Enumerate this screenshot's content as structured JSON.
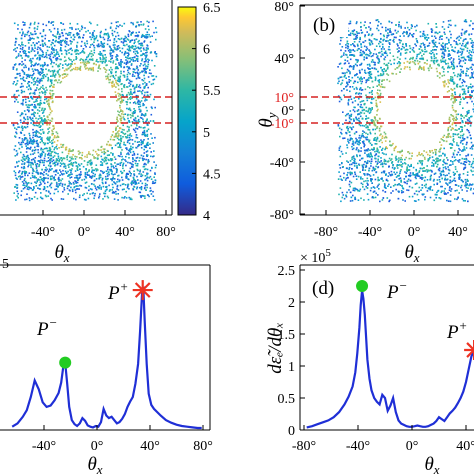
{
  "colors": {
    "curve": "#1f2fd6",
    "marker_minus": "#22cc22",
    "marker_plus": "#ee3322",
    "dashed": "#d62222",
    "axis": "#000000"
  },
  "colorbar": {
    "ticks": [
      "6.5",
      "6",
      "5.5",
      "5",
      "4.5",
      "4"
    ],
    "values": [
      6.5,
      6,
      5.5,
      5,
      4.5,
      4
    ],
    "range": [
      4,
      6.5
    ],
    "colormap": "parula"
  },
  "panel_a": {
    "x_ticks": [
      "-40°",
      "0°",
      "40°",
      "80°"
    ],
    "xlabel_sym": "θ",
    "xlabel_sub": "x",
    "exp_fragment": "5"
  },
  "panel_b": {
    "label": "(b)",
    "y_ticks": [
      "80°",
      "40°",
      "0°",
      "-40°",
      "-80°"
    ],
    "red_ticks": [
      "10°",
      "-10°"
    ],
    "ylabel_sym": "θ",
    "ylabel_sub": "y",
    "x_ticks": [
      "-80°",
      "-40°",
      "0°",
      "40°"
    ],
    "xlabel_sym": "θ",
    "xlabel_sub": "x"
  },
  "panel_c": {
    "x_ticks": [
      "-40°",
      "0°",
      "40°",
      "80°"
    ],
    "xlabel_sym": "θ",
    "xlabel_sub": "x",
    "peak_minus_sym": "P",
    "peak_minus_sup": "−",
    "peak_plus_sym": "P",
    "peak_plus_sup": "+"
  },
  "panel_d": {
    "label": "(d)",
    "exponent_base": "× 10",
    "exponent_power": "5",
    "y_ticks": [
      "2.5",
      "2",
      "1.5",
      "1",
      "0.5",
      "0"
    ],
    "ylabel": "dε̃ₑ/dθₓ",
    "x_ticks": [
      "-80°",
      "-40°",
      "0°",
      "40°"
    ],
    "xlabel_sym": "θ",
    "xlabel_sub": "x",
    "peak_minus_sym": "P",
    "peak_minus_sup": "−",
    "peak_plus_sym": "P",
    "peak_plus_sup": "+"
  },
  "chart_data": [
    {
      "type": "heatmap",
      "panel": "a",
      "xlabel": "θx",
      "xlim": [
        -80,
        80
      ],
      "x_ticks": [
        -40,
        0,
        40,
        80
      ],
      "colorbar": {
        "range": [
          4,
          6.5
        ],
        "ticks": [
          4,
          4.5,
          5,
          5.5,
          6,
          6.5
        ]
      },
      "reference_lines_y": [
        10,
        -10
      ],
      "void_radius_deg": 32,
      "ring_radius_deg": 35
    },
    {
      "type": "heatmap",
      "panel": "b",
      "label": "(b)",
      "xlabel": "θx",
      "ylabel": "θy",
      "xlim": [
        -80,
        80
      ],
      "ylim": [
        -80,
        80
      ],
      "x_ticks": [
        -80,
        -40,
        0,
        40
      ],
      "y_ticks": [
        80,
        40,
        0,
        -40,
        -80
      ],
      "reference_lines_y": [
        10,
        -10
      ],
      "void_radius_deg": 32,
      "ring_radius_deg": 35
    },
    {
      "type": "line",
      "panel": "c",
      "xlabel": "θx",
      "xlim": [
        -80,
        80
      ],
      "x_ticks": [
        -40,
        0,
        40,
        80
      ],
      "ylim": [
        0,
        2.5
      ],
      "y_scale": 100000,
      "series": [
        {
          "x": [
            -64,
            -60,
            -56,
            -53,
            -50,
            -47,
            -44,
            -41,
            -38,
            -35,
            -32,
            -29,
            -27,
            -25.5,
            -24,
            -22.5,
            -21,
            -19,
            -17,
            -15,
            -13,
            -11,
            -9,
            -7,
            -5,
            -3,
            -1,
            1,
            3,
            5,
            7,
            9,
            11,
            13,
            15,
            17,
            19,
            21,
            23,
            25,
            27,
            29,
            31,
            32.5,
            34,
            35,
            36,
            37.5,
            39,
            41,
            43,
            45,
            48,
            52,
            56,
            60,
            64,
            68,
            72,
            76,
            79
          ],
          "y": [
            0.05,
            0.1,
            0.2,
            0.3,
            0.5,
            0.75,
            0.62,
            0.42,
            0.35,
            0.37,
            0.45,
            0.56,
            0.72,
            0.95,
            1.02,
            0.7,
            0.35,
            0.15,
            0.09,
            0.06,
            0.1,
            0.18,
            0.14,
            0.07,
            0.05,
            0.04,
            0.06,
            0.05,
            0.12,
            0.32,
            0.22,
            0.18,
            0.2,
            0.15,
            0.1,
            0.12,
            0.17,
            0.24,
            0.35,
            0.43,
            0.5,
            0.7,
            1.0,
            1.5,
            2.08,
            2.12,
            1.65,
            1.0,
            0.55,
            0.38,
            0.32,
            0.28,
            0.22,
            0.15,
            0.11,
            0.08,
            0.06,
            0.05,
            0.04,
            0.03,
            0.03
          ]
        }
      ],
      "markers": [
        {
          "label": "P−",
          "x": -24,
          "y": 1.02
        },
        {
          "label": "P+",
          "x": 34.5,
          "y": 2.12
        }
      ]
    },
    {
      "type": "line",
      "panel": "d",
      "label": "(d)",
      "xlabel": "θx",
      "ylabel": "dε̃e/dθx",
      "xlim": [
        -80,
        48
      ],
      "x_ticks": [
        -80,
        -40,
        0,
        40
      ],
      "ylim": [
        0,
        2.5
      ],
      "y_ticks": [
        0,
        0.5,
        1,
        1.5,
        2,
        2.5
      ],
      "y_multiplier": "× 10^5",
      "series": [
        {
          "x": [
            -78,
            -74,
            -70,
            -66,
            -62,
            -58,
            -54,
            -50,
            -47,
            -44,
            -42,
            -40.5,
            -39,
            -38,
            -37,
            -36,
            -35,
            -34,
            -33,
            -31.5,
            -30,
            -28,
            -26,
            -24,
            -22,
            -20,
            -18,
            -16,
            -14,
            -12,
            -10,
            -8,
            -6,
            -4,
            -2,
            0,
            2,
            4,
            6,
            8,
            10,
            12,
            14,
            16,
            18,
            20,
            22,
            24,
            26,
            28,
            30,
            32,
            34,
            36,
            38,
            40,
            42,
            44,
            46
          ],
          "y": [
            0.04,
            0.06,
            0.09,
            0.12,
            0.15,
            0.2,
            0.28,
            0.4,
            0.52,
            0.68,
            0.9,
            1.2,
            1.6,
            1.95,
            2.18,
            2.05,
            1.8,
            1.45,
            1.1,
            0.8,
            0.62,
            0.5,
            0.44,
            0.4,
            0.55,
            0.5,
            0.3,
            0.38,
            0.5,
            0.28,
            0.15,
            0.1,
            0.08,
            0.06,
            0.05,
            0.05,
            0.06,
            0.07,
            0.06,
            0.05,
            0.05,
            0.06,
            0.08,
            0.1,
            0.14,
            0.2,
            0.17,
            0.14,
            0.2,
            0.26,
            0.3,
            0.35,
            0.42,
            0.5,
            0.6,
            0.75,
            0.95,
            1.15,
            1.25
          ]
        }
      ],
      "markers": [
        {
          "label": "P−",
          "x": -37,
          "y": 2.25
        },
        {
          "label": "P+",
          "x": 46,
          "y": 1.25
        }
      ]
    }
  ]
}
